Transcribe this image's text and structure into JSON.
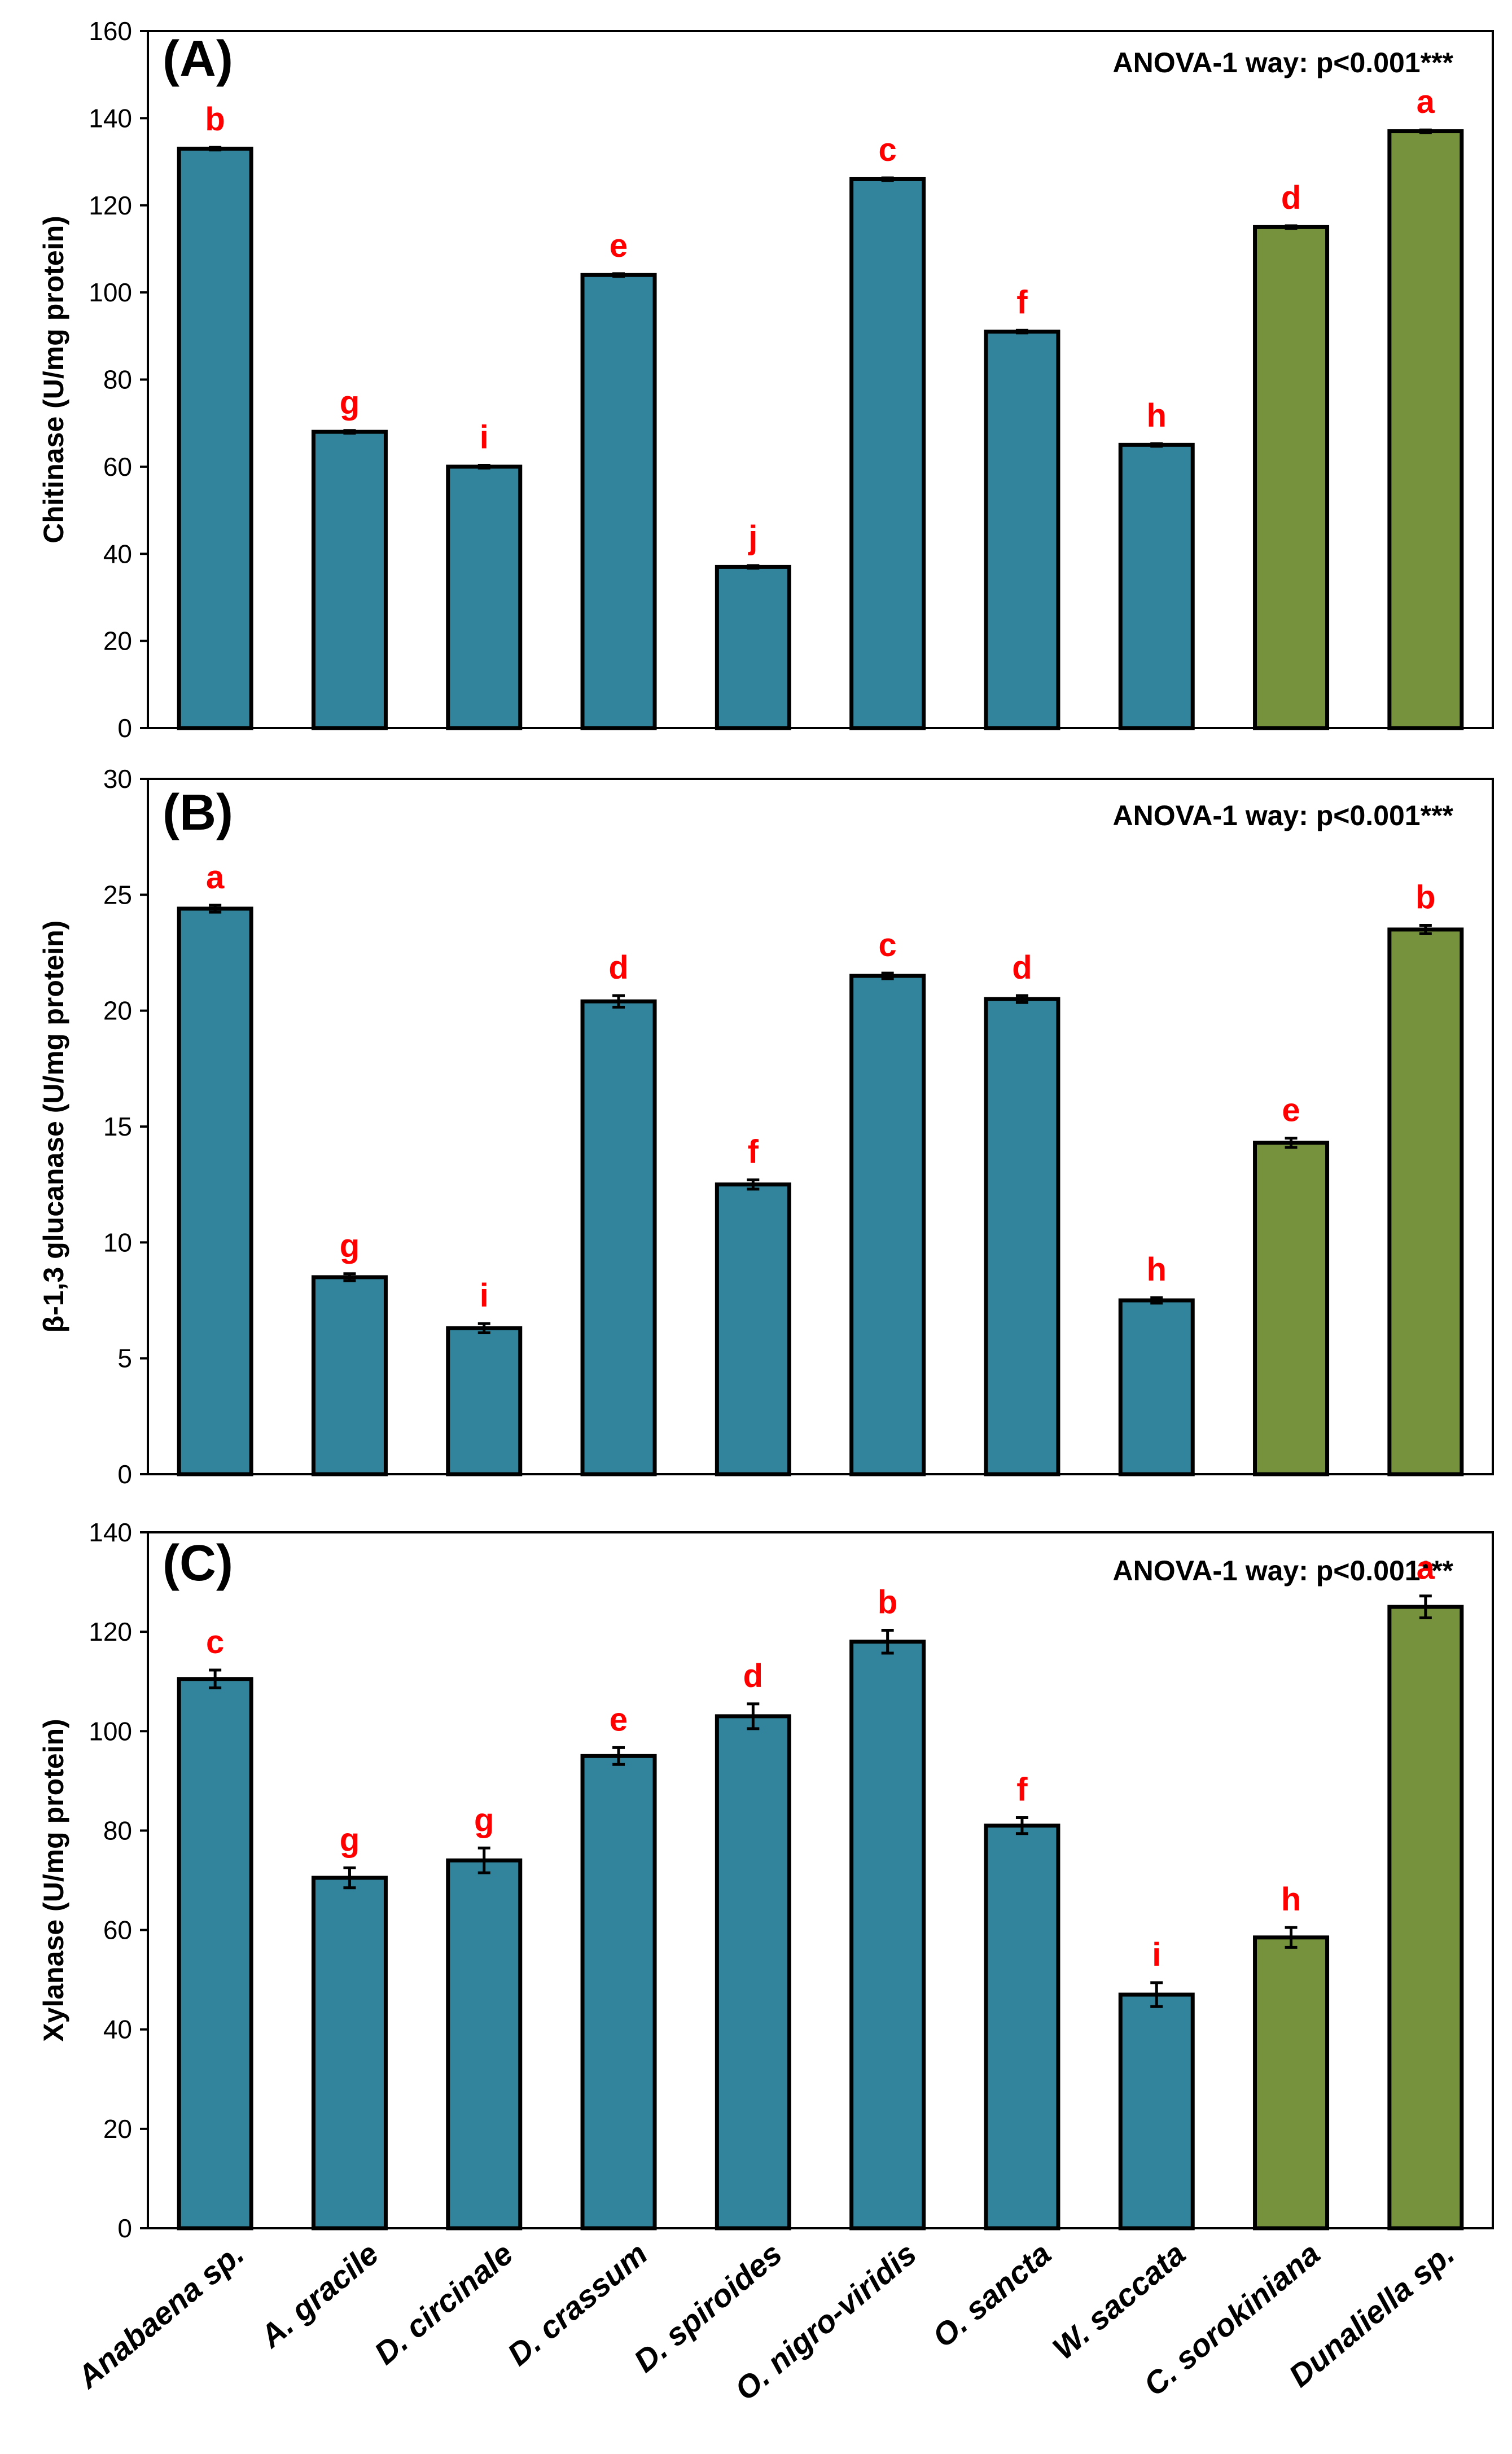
{
  "chart_data": [
    {
      "type": "bar",
      "panel_label": "(A)",
      "annotation": "ANOVA-1 way: p<0.001***",
      "ylabel": "Chitinase (U/mg protein)",
      "ylim": [
        0,
        160
      ],
      "yticks": [
        "0",
        "20",
        "40",
        "60",
        "80",
        "100",
        "120",
        "140",
        "160"
      ],
      "categories": [
        "Anabaena sp.",
        "A. gracile",
        "D. circinale",
        "D. crassum",
        "D. spiroides",
        "O. nigro-viridis",
        "O. sancta",
        "W. saccata",
        "C. sorokiniana",
        "Dunaliella sp."
      ],
      "values": [
        133,
        68,
        60,
        104,
        37,
        126,
        91,
        65,
        115,
        137
      ],
      "errors": [
        0.3,
        0.3,
        0.3,
        0.3,
        0.3,
        0.3,
        0.3,
        0.3,
        0.3,
        0.3
      ],
      "letters": [
        "b",
        "g",
        "i",
        "e",
        "j",
        "c",
        "f",
        "h",
        "d",
        "a"
      ]
    },
    {
      "type": "bar",
      "panel_label": "(B)",
      "annotation": "ANOVA-1 way: p<0.001***",
      "ylabel": "β-1,3 glucanase (U/mg protein)",
      "ylim": [
        0,
        30
      ],
      "yticks": [
        "0",
        "5",
        "10",
        "15",
        "20",
        "25",
        "30"
      ],
      "categories": [
        "Anabaena sp.",
        "A. gracile",
        "D. circinale",
        "D. crassum",
        "D. spiroides",
        "O. nigro-viridis",
        "O. sancta",
        "W. saccata",
        "C. sorokiniana",
        "Dunaliella sp."
      ],
      "values": [
        24.4,
        8.5,
        6.3,
        20.4,
        12.5,
        21.5,
        20.5,
        7.5,
        14.3,
        23.5
      ],
      "errors": [
        0.15,
        0.15,
        0.2,
        0.25,
        0.2,
        0.12,
        0.15,
        0.12,
        0.2,
        0.18
      ],
      "letters": [
        "a",
        "g",
        "i",
        "d",
        "f",
        "c",
        "d",
        "h",
        "e",
        "b"
      ]
    },
    {
      "type": "bar",
      "panel_label": "(C)",
      "annotation": "ANOVA-1 way: p<0.001***",
      "ylabel": "Xylanase (U/mg protein)",
      "ylim": [
        0,
        140
      ],
      "yticks": [
        "0",
        "20",
        "40",
        "60",
        "80",
        "100",
        "120",
        "140"
      ],
      "categories": [
        "Anabaena sp.",
        "A. gracile",
        "D. circinale",
        "D. crassum",
        "D. spiroides",
        "O. nigro-viridis",
        "O. sancta",
        "W. saccata",
        "C. sorokiniana",
        "Dunaliella sp."
      ],
      "values": [
        110.5,
        70.5,
        74,
        95,
        103,
        118,
        81,
        47,
        58.5,
        125
      ],
      "errors": [
        1.8,
        2.0,
        2.5,
        1.7,
        2.5,
        2.3,
        1.6,
        2.4,
        2.0,
        2.2
      ],
      "letters": [
        "c",
        "g",
        "g",
        "e",
        "d",
        "b",
        "f",
        "i",
        "h",
        "a"
      ]
    }
  ],
  "colors": {
    "cyanobacteria_bar": "#31849b",
    "green_algae_bar": "#76923c",
    "significance_letter": "#ff0000",
    "axis": "#000000"
  },
  "green_categories": [
    "C. sorokiniana",
    "Dunaliella sp."
  ]
}
